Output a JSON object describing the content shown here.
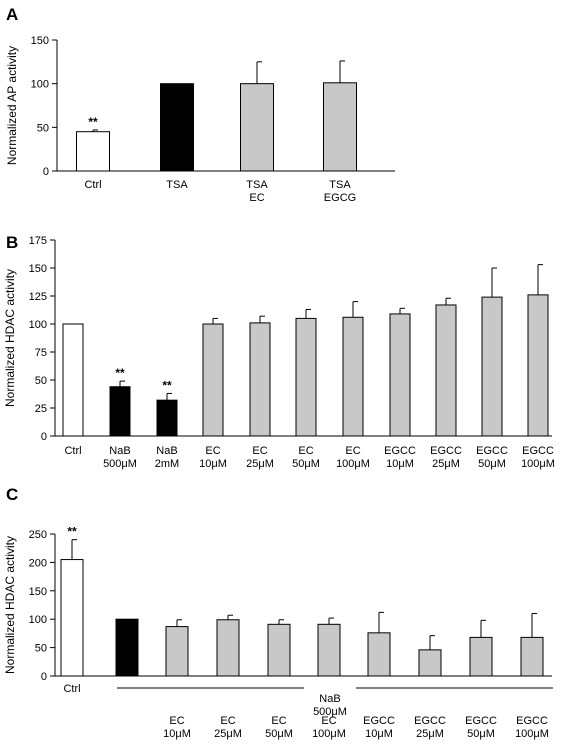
{
  "chart_data": [
    {
      "panel": "A",
      "type": "bar",
      "ylabel": "Normalized AP activity",
      "ylim": [
        0,
        150
      ],
      "yticks": [
        0,
        50,
        100,
        150
      ],
      "categories": [
        [
          "Ctrl"
        ],
        [
          "TSA"
        ],
        [
          "TSA",
          "EC"
        ],
        [
          "TSA",
          "EGCG"
        ]
      ],
      "values": [
        45,
        100,
        100,
        101
      ],
      "errors": [
        2,
        0,
        25,
        25
      ],
      "colors": [
        "#ffffff",
        "#000000",
        "#c8c8c8",
        "#c8c8c8"
      ],
      "significance": [
        "**",
        "",
        "",
        ""
      ]
    },
    {
      "panel": "B",
      "type": "bar",
      "ylabel": "Normalized HDAC activity",
      "ylim": [
        0,
        175
      ],
      "yticks": [
        0,
        25,
        50,
        75,
        100,
        125,
        150,
        175
      ],
      "categories": [
        [
          "Ctrl"
        ],
        [
          "NaB",
          "500μM"
        ],
        [
          "NaB",
          "2mM"
        ],
        [
          "EC",
          "10μM"
        ],
        [
          "EC",
          "25μM"
        ],
        [
          "EC",
          "50μM"
        ],
        [
          "EC",
          "100μM"
        ],
        [
          "EGCC",
          "10μM"
        ],
        [
          "EGCC",
          "25μM"
        ],
        [
          "EGCC",
          "50μM"
        ],
        [
          "EGCC",
          "100μM"
        ]
      ],
      "values": [
        100,
        44,
        32,
        100,
        101,
        105,
        106,
        109,
        117,
        124,
        126
      ],
      "errors": [
        0,
        5,
        6,
        5,
        6,
        8,
        14,
        5,
        6,
        26,
        27
      ],
      "colors": [
        "#ffffff",
        "#000000",
        "#000000",
        "#c8c8c8",
        "#c8c8c8",
        "#c8c8c8",
        "#c8c8c8",
        "#c8c8c8",
        "#c8c8c8",
        "#c8c8c8",
        "#c8c8c8"
      ],
      "significance": [
        "",
        "**",
        "**",
        "",
        "",
        "",
        "",
        "",
        "",
        "",
        ""
      ]
    },
    {
      "panel": "C",
      "type": "bar",
      "ylabel": "Normalized HDAC activity",
      "ylim": [
        0,
        250
      ],
      "yticks": [
        0,
        50,
        100,
        150,
        200,
        250
      ],
      "categories": [
        [
          "Ctrl"
        ],
        [],
        [
          "EC",
          "10μM"
        ],
        [
          "EC",
          "25μM"
        ],
        [
          "EC",
          "50μM"
        ],
        [
          "EC",
          "100μM"
        ],
        [
          "EGCC",
          "10μM"
        ],
        [
          "EGCC",
          "25μM"
        ],
        [
          "EGCC",
          "50μM"
        ],
        [
          "EGCC",
          "100μM"
        ]
      ],
      "values": [
        205,
        100,
        87,
        99,
        91,
        91,
        76,
        46,
        68,
        68
      ],
      "errors": [
        35,
        0,
        12,
        8,
        8,
        11,
        36,
        25,
        30,
        42
      ],
      "colors": [
        "#ffffff",
        "#000000",
        "#c8c8c8",
        "#c8c8c8",
        "#c8c8c8",
        "#c8c8c8",
        "#c8c8c8",
        "#c8c8c8",
        "#c8c8c8",
        "#c8c8c8"
      ],
      "significance": [
        "**",
        "",
        "",
        "",
        "",
        "",
        "",
        "",
        "",
        ""
      ],
      "group_label": [
        "NaB",
        "500μM"
      ]
    }
  ]
}
